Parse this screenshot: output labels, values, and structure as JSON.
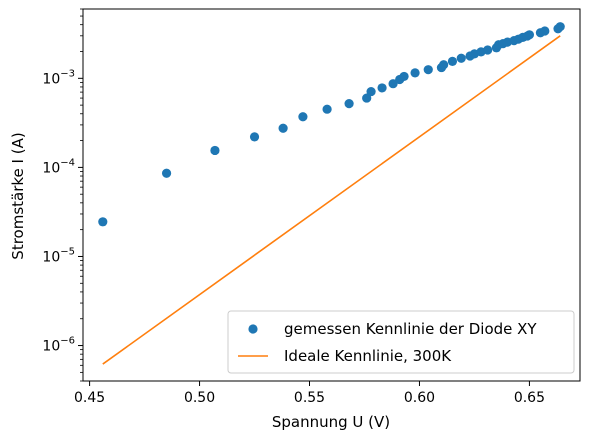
{
  "chart_data": {
    "type": "scatter",
    "xlabel": "Spannung U (V)",
    "ylabel": "Stromstärke I (A)",
    "xlim": [
      0.447,
      0.673
    ],
    "ylim": [
      4e-07,
      0.006
    ],
    "yscale": "log",
    "grid": false,
    "legend_position": "lower-right",
    "x_ticks": [
      {
        "value": 0.45,
        "label": "0.45"
      },
      {
        "value": 0.5,
        "label": "0.50"
      },
      {
        "value": 0.55,
        "label": "0.55"
      },
      {
        "value": 0.6,
        "label": "0.60"
      },
      {
        "value": 0.65,
        "label": "0.65"
      }
    ],
    "y_ticks": [
      {
        "value": 1e-06,
        "base": "10",
        "exp": "−6"
      },
      {
        "value": 1e-05,
        "base": "10",
        "exp": "−5"
      },
      {
        "value": 0.0001,
        "base": "10",
        "exp": "−4"
      },
      {
        "value": 0.001,
        "base": "10",
        "exp": "−3"
      }
    ],
    "series": [
      {
        "name": "gemessen Kennlinie der Diode XY",
        "kind": "scatter",
        "color": "#1f77b4",
        "x": [
          0.456,
          0.485,
          0.507,
          0.525,
          0.538,
          0.547,
          0.558,
          0.568,
          0.576,
          0.578,
          0.583,
          0.588,
          0.591,
          0.593,
          0.598,
          0.604,
          0.61,
          0.611,
          0.615,
          0.619,
          0.623,
          0.625,
          0.628,
          0.631,
          0.635,
          0.636,
          0.638,
          0.64,
          0.643,
          0.645,
          0.647,
          0.649,
          0.65,
          0.655,
          0.657,
          0.663,
          0.664
        ],
        "y": [
          2.45e-05,
          8.6e-05,
          0.000155,
          0.00022,
          0.000275,
          0.00037,
          0.00045,
          0.00052,
          0.0006,
          0.00071,
          0.00078,
          0.00087,
          0.00097,
          0.00105,
          0.00115,
          0.00125,
          0.00132,
          0.00142,
          0.00155,
          0.00168,
          0.00178,
          0.00188,
          0.00198,
          0.00208,
          0.0022,
          0.00238,
          0.00245,
          0.00255,
          0.00265,
          0.00275,
          0.00288,
          0.00298,
          0.00308,
          0.00325,
          0.0034,
          0.0036,
          0.0038
        ]
      },
      {
        "name": "Ideale Kennlinie, 300K",
        "kind": "line",
        "color": "#ff7f0e",
        "x": [
          0.456,
          0.664
        ],
        "y": [
          6.2e-07,
          0.003
        ]
      }
    ]
  }
}
